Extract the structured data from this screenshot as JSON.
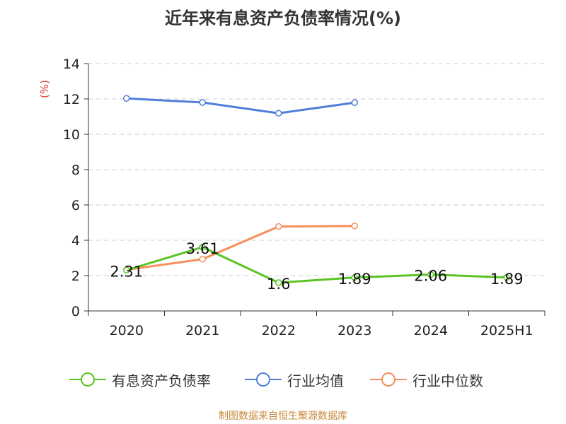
{
  "title": "近年来有息资产负债率情况(%)",
  "source": "制图数据来自恒生聚源数据库",
  "colors": {
    "有息资产负债率": "#5bc424",
    "行业均值": "#4e7fd9",
    "行业中位数": "#f5905c",
    "ylabel": "#e33a3a",
    "grid": "#cccccc",
    "axis": "#333333"
  },
  "chart_data": {
    "type": "line",
    "title": "近年来有息资产负债率情况(%)",
    "ylabel": "(%)",
    "xlabel": "",
    "categories": [
      "2020",
      "2021",
      "2022",
      "2023",
      "2024",
      "2025H1"
    ],
    "ylim": [
      0,
      14
    ],
    "yticks": [
      0,
      2,
      4,
      6,
      8,
      10,
      12,
      14
    ],
    "grid": true,
    "legend_position": "bottom",
    "series": [
      {
        "name": "有息资产负债率",
        "values": [
          2.31,
          3.61,
          1.6,
          1.89,
          2.06,
          1.89
        ],
        "labels": [
          "2.31",
          "3.61",
          "1.6",
          "1.89",
          "2.06",
          "1.89"
        ]
      },
      {
        "name": "行业均值",
        "values": [
          12.03,
          11.8,
          11.19,
          11.79,
          null,
          null
        ]
      },
      {
        "name": "行业中位数",
        "values": [
          2.33,
          2.93,
          4.78,
          4.81,
          null,
          null
        ]
      }
    ]
  }
}
